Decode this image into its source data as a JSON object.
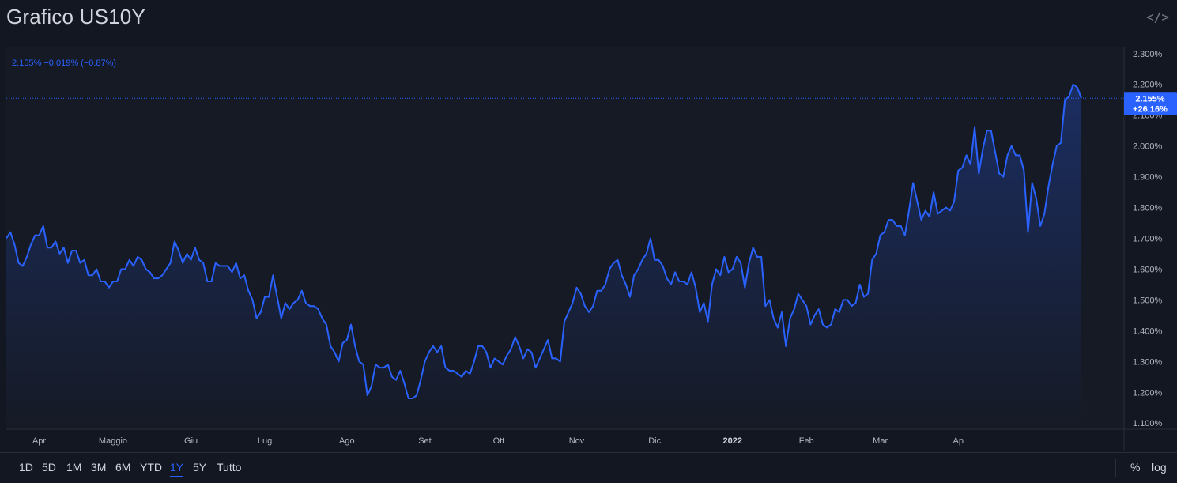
{
  "header": {
    "title": "Grafico US10Y",
    "embed_icon": "code-embed-icon"
  },
  "legend": {
    "text": "2.155%  −0.019% (−0.87%)"
  },
  "price_label": {
    "value": "2.155%",
    "change": "+26.16%"
  },
  "ranges": [
    "1D",
    "5D",
    "1M",
    "3M",
    "6M",
    "YTD",
    "1Y",
    "5Y",
    "Tutto"
  ],
  "active_range": "1Y",
  "scale_buttons": {
    "percent": "%",
    "log": "log"
  },
  "colors": {
    "line": "#2962ff",
    "background": "#131722",
    "label_bg": "#2962ff"
  },
  "chart_data": {
    "type": "area",
    "ylim": [
      1.08,
      2.32
    ],
    "yticks": [
      "1.100%",
      "1.200%",
      "1.300%",
      "1.400%",
      "1.500%",
      "1.600%",
      "1.700%",
      "1.800%",
      "1.900%",
      "2.000%",
      "2.100%",
      "2.200%",
      "2.300%"
    ],
    "ytick_values": [
      1.1,
      1.2,
      1.3,
      1.4,
      1.5,
      1.6,
      1.7,
      1.8,
      1.9,
      2.0,
      2.1,
      2.2,
      2.3
    ],
    "xticks": [
      "Apr",
      "Maggio",
      "Giu",
      "Lug",
      "Ago",
      "Set",
      "Ott",
      "Nov",
      "Dic",
      "2022",
      "Feb",
      "Mar",
      "Ap"
    ],
    "xtick_index": [
      8,
      26,
      45,
      63,
      83,
      102,
      120,
      139,
      158,
      177,
      195,
      213,
      232
    ],
    "series": [
      {
        "values": [
          1.7,
          1.72,
          1.68,
          1.62,
          1.61,
          1.64,
          1.68,
          1.71,
          1.71,
          1.74,
          1.67,
          1.67,
          1.69,
          1.65,
          1.67,
          1.62,
          1.66,
          1.66,
          1.62,
          1.63,
          1.58,
          1.58,
          1.6,
          1.56,
          1.56,
          1.54,
          1.56,
          1.56,
          1.6,
          1.6,
          1.63,
          1.61,
          1.64,
          1.63,
          1.6,
          1.59,
          1.57,
          1.57,
          1.58,
          1.6,
          1.62,
          1.69,
          1.66,
          1.62,
          1.65,
          1.63,
          1.67,
          1.63,
          1.62,
          1.56,
          1.56,
          1.62,
          1.61,
          1.61,
          1.61,
          1.59,
          1.62,
          1.57,
          1.58,
          1.53,
          1.5,
          1.44,
          1.46,
          1.51,
          1.51,
          1.58,
          1.51,
          1.44,
          1.49,
          1.47,
          1.49,
          1.5,
          1.53,
          1.49,
          1.48,
          1.48,
          1.47,
          1.44,
          1.42,
          1.35,
          1.33,
          1.3,
          1.36,
          1.37,
          1.42,
          1.35,
          1.3,
          1.29,
          1.19,
          1.22,
          1.29,
          1.28,
          1.28,
          1.29,
          1.25,
          1.24,
          1.27,
          1.23,
          1.18,
          1.18,
          1.19,
          1.24,
          1.3,
          1.33,
          1.35,
          1.33,
          1.35,
          1.28,
          1.27,
          1.27,
          1.26,
          1.25,
          1.27,
          1.26,
          1.3,
          1.35,
          1.35,
          1.33,
          1.28,
          1.31,
          1.3,
          1.29,
          1.32,
          1.34,
          1.38,
          1.35,
          1.31,
          1.34,
          1.33,
          1.28,
          1.31,
          1.34,
          1.37,
          1.31,
          1.31,
          1.3,
          1.43,
          1.46,
          1.49,
          1.54,
          1.52,
          1.48,
          1.46,
          1.48,
          1.53,
          1.53,
          1.55,
          1.6,
          1.62,
          1.63,
          1.58,
          1.55,
          1.51,
          1.58,
          1.6,
          1.63,
          1.65,
          1.7,
          1.63,
          1.63,
          1.61,
          1.57,
          1.55,
          1.59,
          1.56,
          1.56,
          1.55,
          1.59,
          1.54,
          1.46,
          1.49,
          1.43,
          1.55,
          1.6,
          1.58,
          1.64,
          1.59,
          1.6,
          1.64,
          1.62,
          1.54,
          1.62,
          1.67,
          1.64,
          1.64,
          1.48,
          1.5,
          1.44,
          1.41,
          1.46,
          1.35,
          1.44,
          1.47,
          1.52,
          1.5,
          1.48,
          1.42,
          1.45,
          1.47,
          1.42,
          1.41,
          1.42,
          1.47,
          1.46,
          1.5,
          1.5,
          1.48,
          1.49,
          1.55,
          1.51,
          1.52,
          1.63,
          1.65,
          1.71,
          1.72,
          1.76,
          1.76,
          1.74,
          1.74,
          1.71,
          1.79,
          1.88,
          1.82,
          1.76,
          1.79,
          1.77,
          1.85,
          1.78,
          1.79,
          1.8,
          1.79,
          1.82,
          1.92,
          1.93,
          1.97,
          1.94,
          2.06,
          1.91,
          1.99,
          2.05,
          2.05,
          1.98,
          1.91,
          1.9,
          1.97,
          2.0,
          1.97,
          1.97,
          1.92,
          1.72,
          1.88,
          1.83,
          1.74,
          1.78,
          1.87,
          1.94,
          2.0,
          2.01,
          2.15,
          2.16,
          2.2,
          2.19,
          2.155
        ]
      }
    ]
  }
}
